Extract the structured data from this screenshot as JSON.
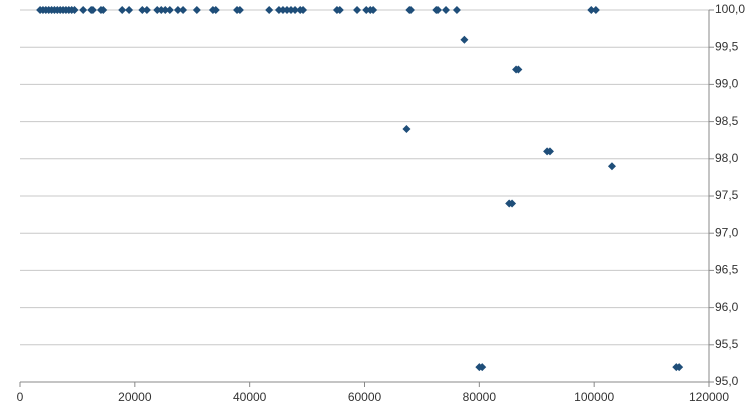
{
  "chart_data": {
    "type": "scatter",
    "color": "#1f4e79",
    "grid": true,
    "x": [
      3500,
      4000,
      4500,
      5000,
      5500,
      6000,
      6500,
      7000,
      7500,
      8000,
      8500,
      9000,
      9500,
      11000,
      12400,
      12700,
      14100,
      14500,
      17800,
      19000,
      21300,
      22100,
      23900,
      24600,
      25300,
      26100,
      27500,
      28400,
      30800,
      33600,
      34100,
      37800,
      38300,
      43400,
      45100,
      45800,
      46500,
      47200,
      47900,
      48800,
      49300,
      55200,
      55700,
      58700,
      60300,
      61000,
      61500,
      67800,
      68100,
      72500,
      72800,
      74200,
      76100,
      99500,
      100300,
      77400,
      86400,
      86800,
      67300,
      91800,
      92300,
      103100,
      85200,
      85700,
      80000,
      80500,
      114300,
      114800
    ],
    "values": [
      100,
      100,
      100,
      100,
      100,
      100,
      100,
      100,
      100,
      100,
      100,
      100,
      100,
      100,
      100,
      100,
      100,
      100,
      100,
      100,
      100,
      100,
      100,
      100,
      100,
      100,
      100,
      100,
      100,
      100,
      100,
      100,
      100,
      100,
      100,
      100,
      100,
      100,
      100,
      100,
      100,
      100,
      100,
      100,
      100,
      100,
      100,
      100,
      100,
      100,
      100,
      100,
      100,
      100,
      100,
      99.6,
      99.2,
      99.2,
      98.4,
      98.1,
      98.1,
      97.9,
      97.4,
      97.4,
      95.2,
      95.2,
      95.2,
      95.2
    ],
    "xlim": [
      0,
      120000
    ],
    "xticks": [
      0,
      20000,
      40000,
      60000,
      80000,
      100000,
      120000
    ],
    "ylim": [
      95,
      100
    ],
    "yticks": [
      {
        "value": 95,
        "label": "95,0"
      },
      {
        "value": 95.5,
        "label": "95,5"
      },
      {
        "value": 96,
        "label": "96,0"
      },
      {
        "value": 96.5,
        "label": "96,5"
      },
      {
        "value": 97,
        "label": "97,0"
      },
      {
        "value": 97.5,
        "label": "97,5"
      },
      {
        "value": 98,
        "label": "98,0"
      },
      {
        "value": 98.5,
        "label": "98,5"
      },
      {
        "value": 99,
        "label": "99,0"
      },
      {
        "value": 99.5,
        "label": "99,5"
      },
      {
        "value": 100,
        "label": "100,0"
      }
    ]
  }
}
